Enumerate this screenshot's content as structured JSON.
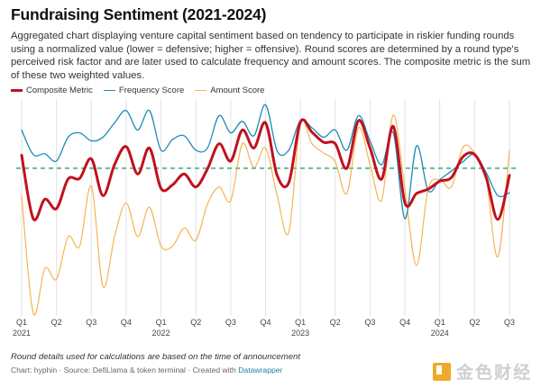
{
  "header": {
    "title": "Fundraising Sentiment (2021-2024)",
    "description": "Aggregated chart displaying venture capital sentiment based on tendency to participate in riskier funding rounds using a normalized value (lower = defensive; higher = offensive). Round scores are determined by a round type's perceived risk factor and are later used to calculate frequency and amount scores. The composite metric is the sum of these two weighted values."
  },
  "footer": {
    "note": "Round details used for calculations are based on the time of announcement",
    "credits_prefix": "Chart: hyphin · Source: DefiLlama & token terminal · Created with ",
    "credits_link": "Datawrapper",
    "watermark": "金色财经"
  },
  "chart_data": {
    "type": "line",
    "title": "Fundraising Sentiment (2021-2024)",
    "xlabel": "",
    "ylabel": "",
    "x_start": "2021-01",
    "x_end": "2024-07",
    "x_interval": "month",
    "ylim": [
      -2.05,
      0.96
    ],
    "reference_line": {
      "value": 0,
      "style": "dashed",
      "color": "#3aa882"
    },
    "grid": "vertical quarterly",
    "legend_position": "top-left",
    "x_ticks": [
      {
        "label": "Q1",
        "year": "2021"
      },
      {
        "label": "Q2",
        "year": ""
      },
      {
        "label": "Q3",
        "year": ""
      },
      {
        "label": "Q4",
        "year": ""
      },
      {
        "label": "Q1",
        "year": "2022"
      },
      {
        "label": "Q2",
        "year": ""
      },
      {
        "label": "Q3",
        "year": ""
      },
      {
        "label": "Q4",
        "year": ""
      },
      {
        "label": "Q1",
        "year": "2023"
      },
      {
        "label": "Q2",
        "year": ""
      },
      {
        "label": "Q3",
        "year": ""
      },
      {
        "label": "Q4",
        "year": ""
      },
      {
        "label": "Q1",
        "year": "2024"
      },
      {
        "label": "Q2",
        "year": ""
      },
      {
        "label": "Q3",
        "year": ""
      }
    ],
    "series": [
      {
        "name": "Amount Score",
        "color": "#f5b455",
        "width": 1.2,
        "values": [
          -0.38,
          -2.01,
          -1.39,
          -1.54,
          -0.95,
          -1.08,
          -0.25,
          -1.64,
          -0.95,
          -0.48,
          -0.95,
          -0.54,
          -1.08,
          -1.08,
          -0.83,
          -1.0,
          -0.5,
          -0.26,
          -0.45,
          0.34,
          0.01,
          0.28,
          -0.38,
          -0.89,
          0.61,
          0.34,
          0.21,
          0.09,
          -0.35,
          0.56,
          0.05,
          -0.44,
          0.74,
          -0.29,
          -1.35,
          -0.29,
          -0.16,
          -0.26,
          0.29,
          0.21,
          -0.16,
          -1.23,
          0.25
        ]
      },
      {
        "name": "Frequency Score",
        "color": "#1b8db5",
        "width": 1.3,
        "values": [
          0.53,
          0.19,
          0.2,
          0.1,
          0.43,
          0.49,
          0.38,
          0.43,
          0.63,
          0.8,
          0.53,
          0.8,
          0.25,
          0.4,
          0.45,
          0.25,
          0.28,
          0.73,
          0.49,
          0.65,
          0.45,
          0.88,
          0.24,
          0.25,
          0.66,
          0.56,
          0.43,
          0.53,
          0.25,
          0.73,
          0.38,
          0.05,
          0.49,
          -0.7,
          0.31,
          -0.31,
          -0.16,
          -0.04,
          0.09,
          0.19,
          -0.06,
          -0.38,
          -0.34
        ]
      },
      {
        "name": "Composite Metric",
        "color": "#c0111f",
        "width": 3,
        "values": [
          0.18,
          -0.7,
          -0.43,
          -0.56,
          -0.15,
          -0.14,
          0.13,
          -0.38,
          0.05,
          0.3,
          -0.08,
          0.28,
          -0.28,
          -0.23,
          -0.08,
          -0.26,
          -0.01,
          0.34,
          0.1,
          0.53,
          0.28,
          0.63,
          -0.1,
          -0.2,
          0.64,
          0.5,
          0.36,
          0.34,
          0.0,
          0.66,
          0.28,
          -0.15,
          0.58,
          -0.48,
          -0.35,
          -0.29,
          -0.18,
          -0.13,
          0.16,
          0.19,
          -0.13,
          -0.71,
          -0.1
        ]
      }
    ],
    "legend": [
      "Composite Metric",
      "Frequency Score",
      "Amount Score"
    ]
  }
}
